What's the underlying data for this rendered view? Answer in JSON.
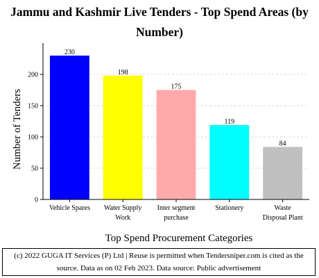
{
  "chart_data": {
    "type": "bar",
    "title": "Jammu and Kashmir Live Tenders - Top Spend Areas (by Number)",
    "xlabel": "Top Spend Procurement Categories",
    "ylabel": "Number of Tenders",
    "categories": [
      [
        "Vehicle Spares"
      ],
      [
        "Water Supply",
        "Work"
      ],
      [
        "Inter segment",
        "purchase"
      ],
      [
        "Stationery"
      ],
      [
        "Waste",
        "Disposal Plant"
      ]
    ],
    "values": [
      230,
      198,
      175,
      119,
      84
    ],
    "bar_colors": [
      "#0000ff",
      "#ffff00",
      "#ffaaaa",
      "#00ffff",
      "#c0c0c0"
    ],
    "ylim": [
      0,
      250
    ],
    "yticks": [
      0,
      50,
      100,
      150,
      200
    ],
    "grid": true
  },
  "footer": {
    "line1": "(c) 2022 GUGA IT Services (P) Ltd | Reuse is permitted when Tendersniper.com is cited as the",
    "line2": "source. Data as on 02 Feb 2023. Data source: Public advertisement"
  }
}
